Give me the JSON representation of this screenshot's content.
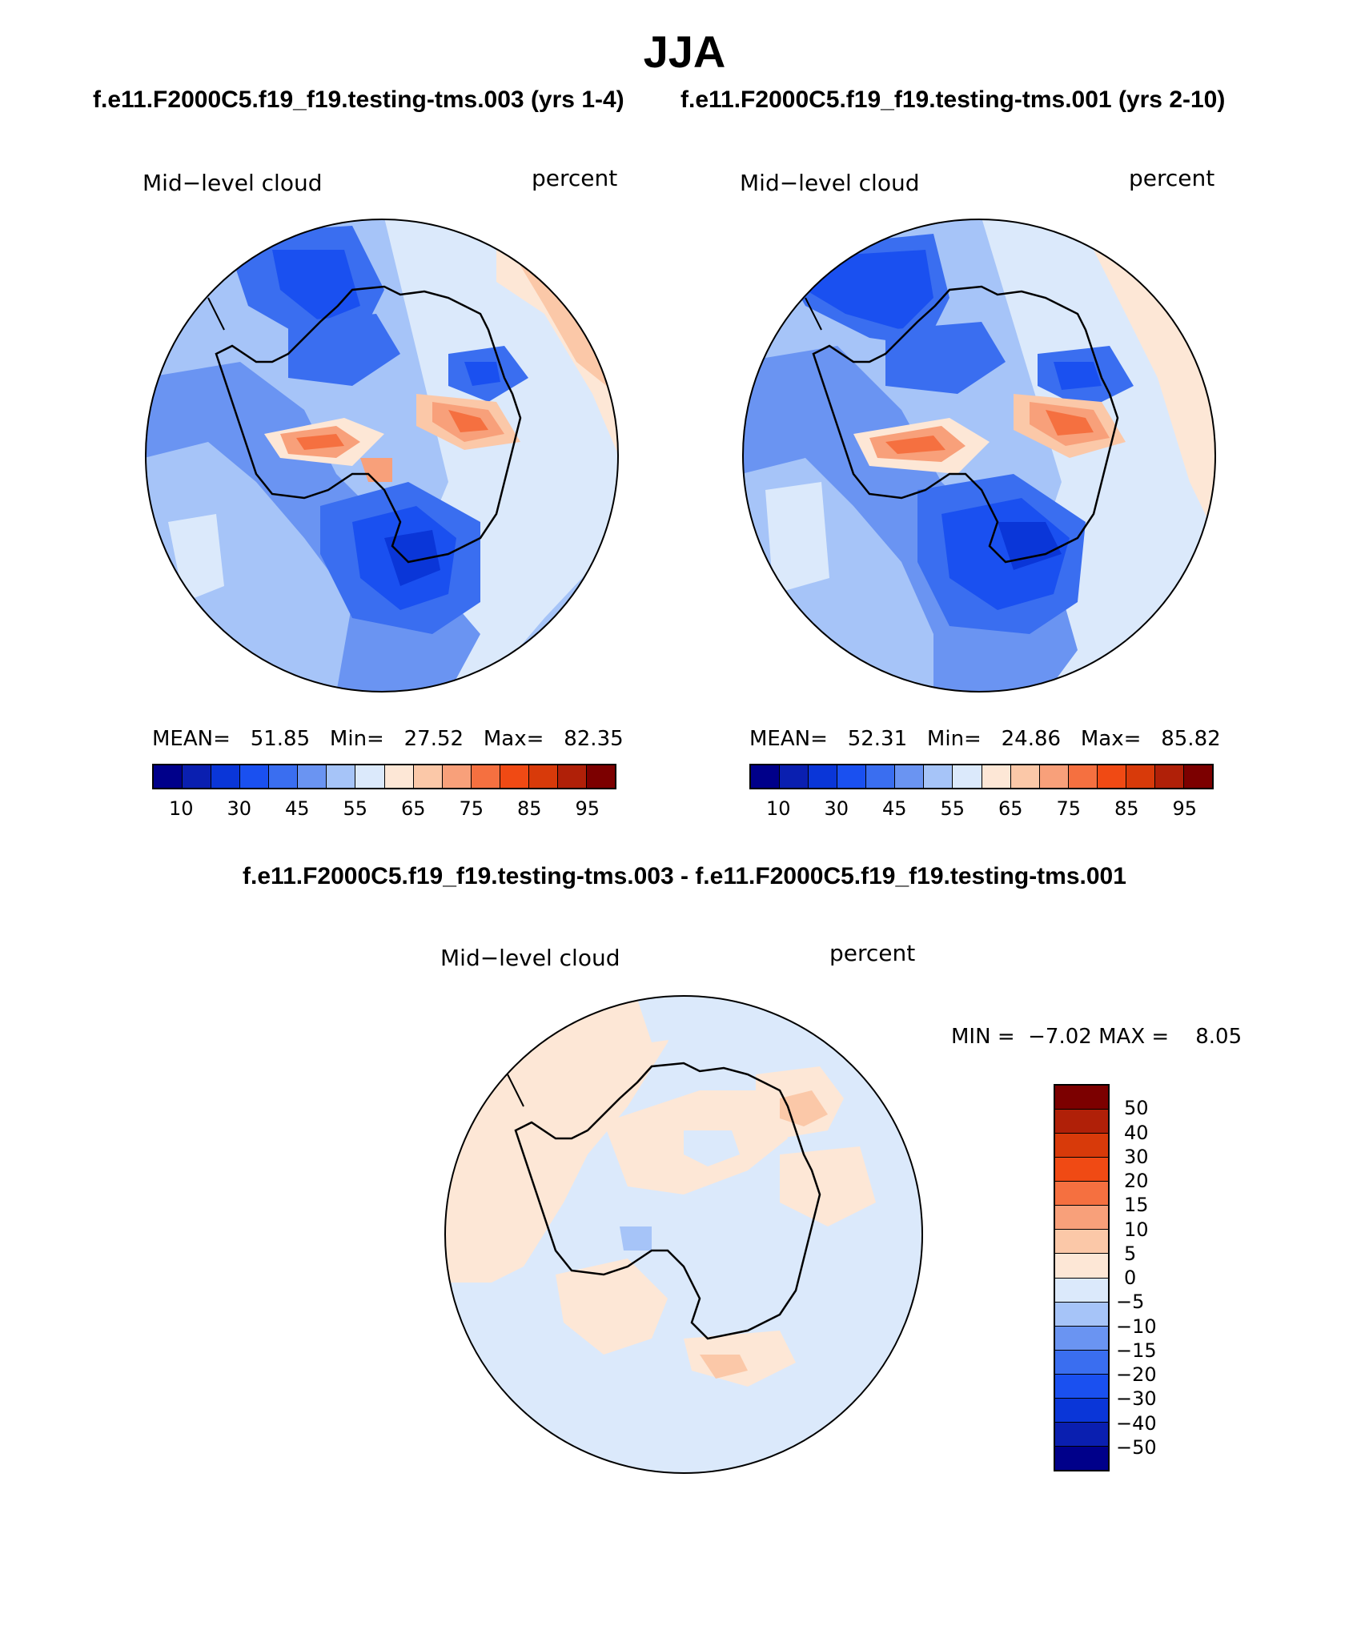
{
  "title": "JJA",
  "panels": [
    {
      "case_title": "f.e11.F2000C5.f19_f19.testing-tms.003 (yrs 1-4)",
      "field_label": "Mid−level cloud",
      "units_label": "percent",
      "mean_label": "MEAN=",
      "mean_value": "51.85",
      "min_label": "Min=",
      "min_value": "27.52",
      "max_label": "Max=",
      "max_value": "82.35"
    },
    {
      "case_title": "f.e11.F2000C5.f19_f19.testing-tms.001 (yrs 2-10)",
      "field_label": "Mid−level cloud",
      "units_label": "percent",
      "mean_label": "MEAN=",
      "mean_value": "52.31",
      "min_label": "Min=",
      "min_value": "24.86",
      "max_label": "Max=",
      "max_value": "85.82"
    }
  ],
  "diff_panel": {
    "title": "f.e11.F2000C5.f19_f19.testing-tms.003 - f.e11.F2000C5.f19_f19.testing-tms.001",
    "field_label": "Mid−level cloud",
    "units_label": "percent",
    "min_label": "MIN =",
    "min_value": "−7.02",
    "max_label": "MAX =",
    "max_value": "8.05"
  },
  "colorbar_main": {
    "colors": [
      "#00008a",
      "#0a1fb0",
      "#0a36d8",
      "#1a50f0",
      "#3a6ef0",
      "#6a94f2",
      "#a6c4f8",
      "#dbe9fb",
      "#fde7d6",
      "#fbc8a8",
      "#f8a07a",
      "#f57040",
      "#f04a14",
      "#d83a0a",
      "#b02008",
      "#7c0000"
    ],
    "tick_labels": [
      "10",
      "30",
      "45",
      "55",
      "65",
      "75",
      "85",
      "95"
    ]
  },
  "colorbar_diff": {
    "colors": [
      "#7c0000",
      "#b02008",
      "#d83a0a",
      "#f04a14",
      "#f57040",
      "#f8a07a",
      "#fbc8a8",
      "#fde7d6",
      "#dbe9fb",
      "#a6c4f8",
      "#6a94f2",
      "#3a6ef0",
      "#1a50f0",
      "#0a36d8",
      "#0a1fb0",
      "#00008a"
    ],
    "tick_labels": [
      "50",
      "40",
      "30",
      "20",
      "15",
      "10",
      "5",
      "0",
      "−5",
      "−10",
      "−15",
      "−20",
      "−30",
      "−40",
      "−50"
    ]
  }
}
